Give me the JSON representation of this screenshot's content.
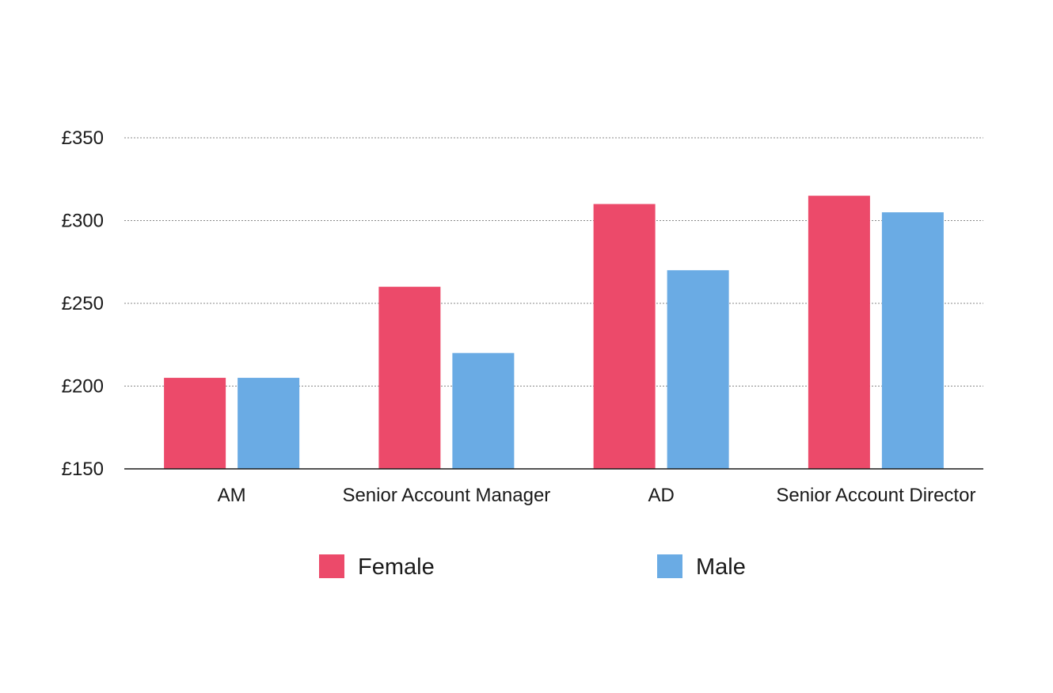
{
  "chart_data": {
    "type": "bar",
    "title": "",
    "xlabel": "",
    "ylabel": "",
    "categories": [
      "AM",
      "Senior Account Manager",
      "AD",
      "Senior Account Director"
    ],
    "series": [
      {
        "name": "Female",
        "color": "#ec4a6a",
        "values": [
          205,
          260,
          310,
          315
        ]
      },
      {
        "name": "Male",
        "color": "#6aabe4",
        "values": [
          205,
          220,
          270,
          305
        ]
      }
    ],
    "ylim": [
      150,
      350
    ],
    "yticks": [
      150,
      200,
      250,
      300,
      350
    ],
    "ytick_labels": [
      "£150",
      "£200",
      "£250",
      "£300",
      "£350"
    ],
    "grid": true,
    "legend_position": "bottom"
  }
}
